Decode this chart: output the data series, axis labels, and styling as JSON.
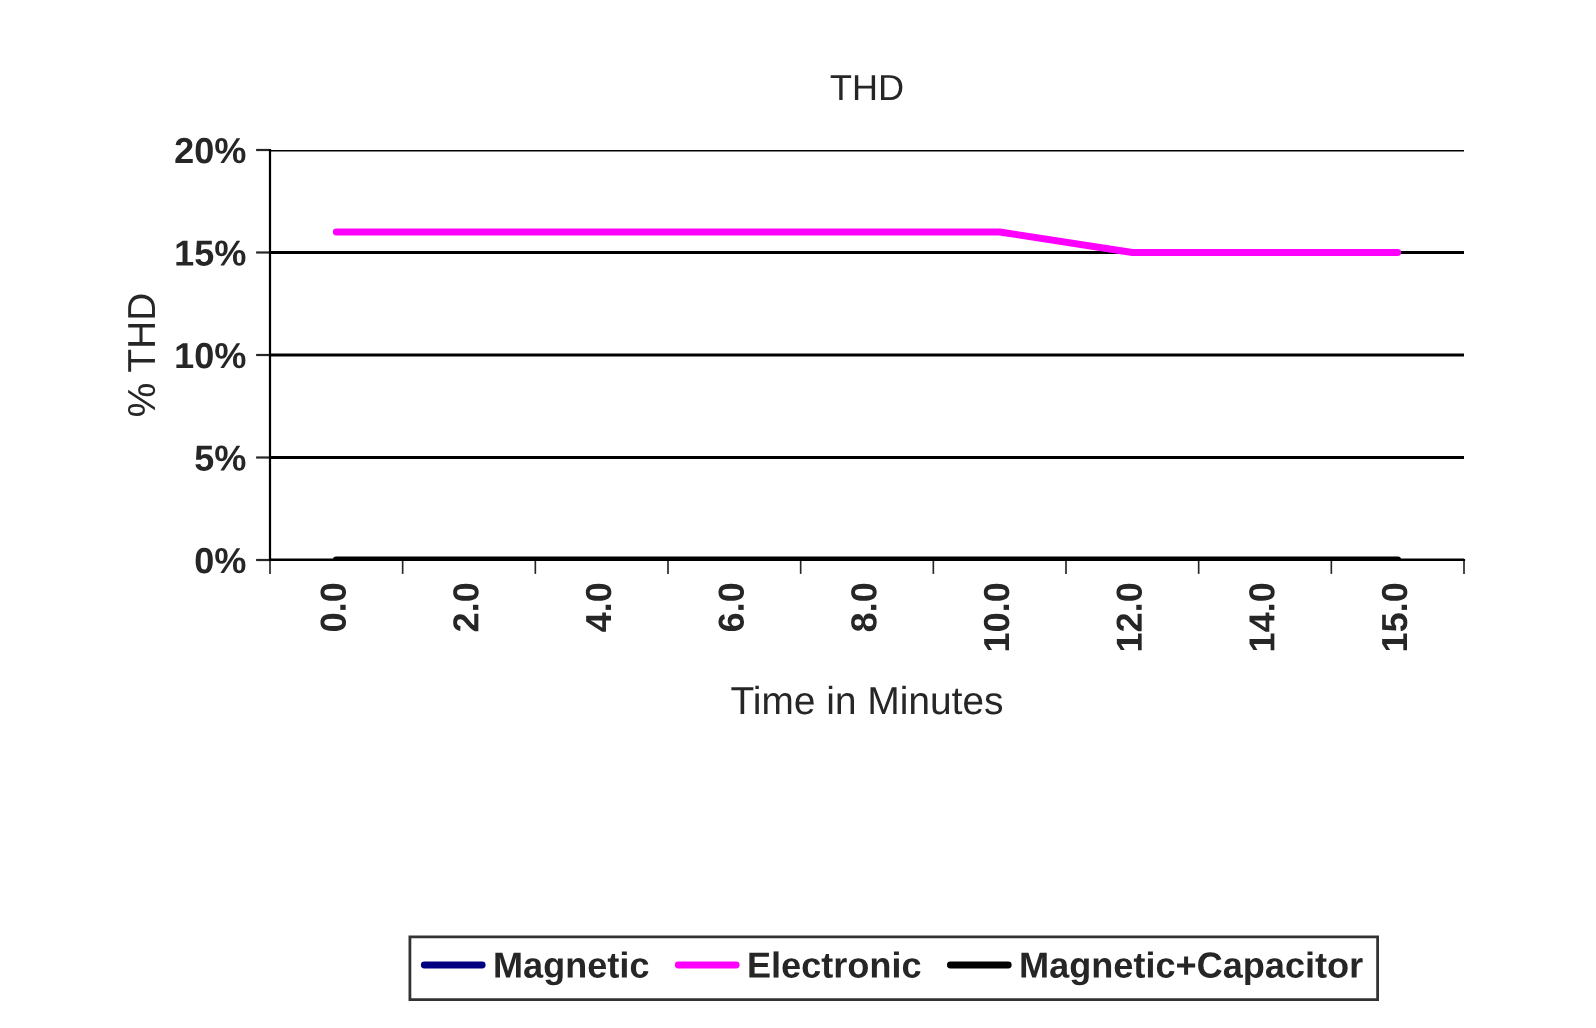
{
  "chart_data": {
    "type": "line",
    "title": "THD",
    "xlabel": "Time in Minutes",
    "ylabel": "% THD",
    "categories": [
      "0.0",
      "2.0",
      "4.0",
      "6.0",
      "8.0",
      "10.0",
      "12.0",
      "14.0",
      "15.0"
    ],
    "series": [
      {
        "name": "Magnetic",
        "color": "#000080",
        "values": [
          null,
          null,
          null,
          null,
          null,
          null,
          null,
          null,
          null
        ]
      },
      {
        "name": "Electronic",
        "color": "#ff00ff",
        "values": [
          16,
          16,
          16,
          16,
          16,
          16,
          15,
          15,
          15
        ]
      },
      {
        "name": "Magnetic+Capacitor",
        "color": "#000000",
        "values": [
          0,
          0,
          0,
          0,
          0,
          0,
          0,
          0,
          0
        ]
      }
    ],
    "ylim": [
      0,
      20
    ],
    "yticks": [
      {
        "value": 0,
        "label": "0%"
      },
      {
        "value": 5,
        "label": "5%"
      },
      {
        "value": 10,
        "label": "10%"
      },
      {
        "value": 15,
        "label": "15%"
      },
      {
        "value": 20,
        "label": "20%"
      }
    ],
    "grid": "y",
    "legend": "bottom",
    "marker": "none",
    "line_style": "solid"
  }
}
